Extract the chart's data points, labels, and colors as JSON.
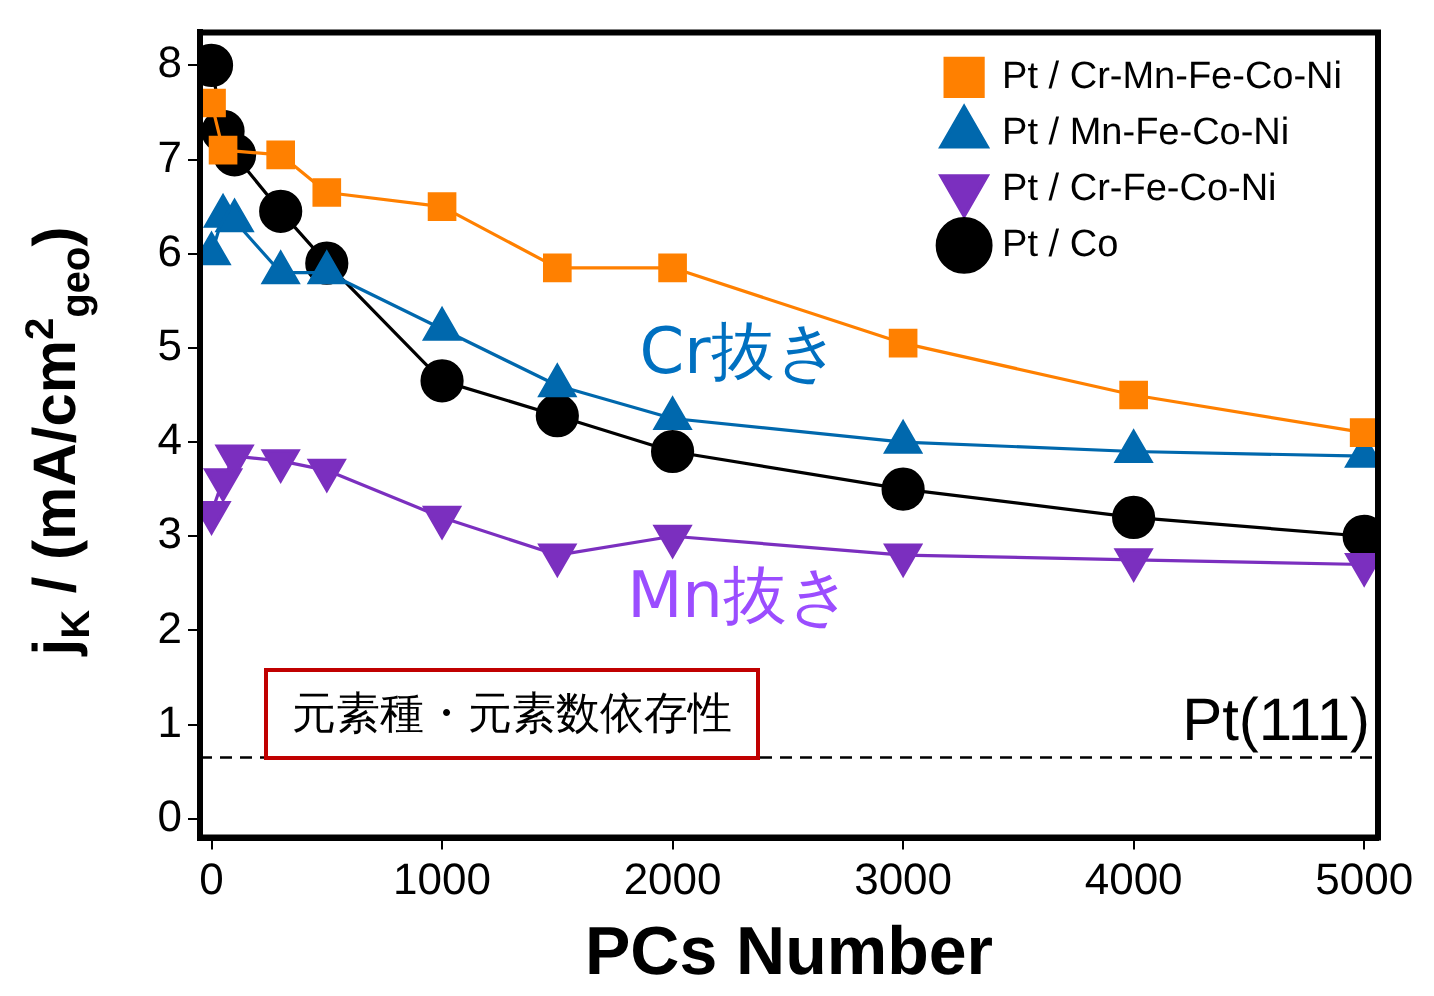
{
  "chart_data": {
    "type": "line",
    "xlabel": "PCs Number",
    "ylabel": "j$_{K}$ / (mA/cm$^{2}$$_{geo}$)",
    "xlim": [
      -50,
      5060
    ],
    "xticks": [
      0,
      {
        "value": 1000,
        "label": "1000"
      },
      {
        "value": 2000,
        "label": "2000"
      },
      {
        "value": 3000,
        "label": "3000"
      },
      {
        "value": 4000,
        "label": "4000"
      },
      {
        "value": 5000,
        "label": "5000"
      }
    ],
    "ylim": [
      -0.2,
      8.35
    ],
    "yticks": [
      0,
      1,
      2,
      3,
      4,
      5,
      6,
      7,
      8
    ],
    "grid": false,
    "legend": "top right",
    "line_style": "solid",
    "series": [
      {
        "name": "Pt / Cr-Mn-Fe-Co-Ni",
        "color": "#ff8000",
        "marker": "square",
        "x": [
          0,
          50,
          300,
          500,
          1000,
          1500,
          2000,
          3000,
          4000,
          5000
        ],
        "values": [
          7.6,
          7.1,
          7.05,
          6.65,
          6.5,
          5.85,
          5.85,
          5.05,
          4.5,
          4.1
        ]
      },
      {
        "name": "Pt / Mn-Fe-Co-Ni",
        "color": "#0068ad",
        "marker": "triangle",
        "x": [
          0,
          50,
          100,
          300,
          500,
          1000,
          1500,
          2000,
          3000,
          4000,
          5000
        ],
        "values": [
          6.0,
          6.4,
          6.35,
          5.8,
          5.8,
          5.2,
          4.6,
          4.25,
          4.0,
          3.9,
          3.85
        ]
      },
      {
        "name": "Pt / Cr-Fe-Co-Ni",
        "color": "#7b2fbf",
        "marker": "triangle-down",
        "x": [
          0,
          50,
          100,
          300,
          500,
          1000,
          1500,
          2000,
          3000,
          4000,
          5000
        ],
        "values": [
          3.25,
          3.6,
          3.85,
          3.8,
          3.7,
          3.2,
          2.8,
          3.0,
          2.8,
          2.75,
          2.7
        ]
      },
      {
        "name": "Pt / Co",
        "color": "#000000",
        "marker": "circle",
        "x": [
          0,
          50,
          100,
          300,
          500,
          1000,
          1500,
          2000,
          3000,
          4000,
          5000
        ],
        "values": [
          8.0,
          7.3,
          7.05,
          6.45,
          5.9,
          4.65,
          4.28,
          3.9,
          3.5,
          3.2,
          3.0
        ]
      }
    ],
    "ref_lines": [
      {
        "axis": "y",
        "value": 0.65,
        "label": "Pt(111)",
        "color": "#000000",
        "line_style": "dashed"
      }
    ],
    "annotations": [
      "Cr抜き",
      "Mn抜き",
      "元素種・元素数依存性"
    ]
  }
}
